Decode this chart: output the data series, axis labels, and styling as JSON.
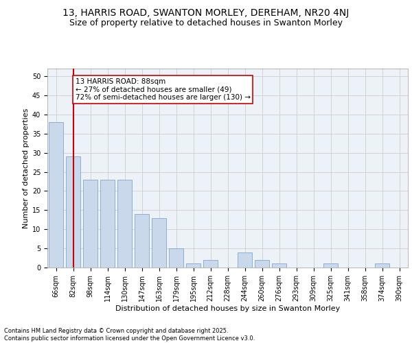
{
  "title1": "13, HARRIS ROAD, SWANTON MORLEY, DEREHAM, NR20 4NJ",
  "title2": "Size of property relative to detached houses in Swanton Morley",
  "xlabel": "Distribution of detached houses by size in Swanton Morley",
  "ylabel": "Number of detached properties",
  "categories": [
    "66sqm",
    "82sqm",
    "98sqm",
    "114sqm",
    "130sqm",
    "147sqm",
    "163sqm",
    "179sqm",
    "195sqm",
    "212sqm",
    "228sqm",
    "244sqm",
    "260sqm",
    "276sqm",
    "293sqm",
    "309sqm",
    "325sqm",
    "341sqm",
    "358sqm",
    "374sqm",
    "390sqm"
  ],
  "values": [
    38,
    29,
    23,
    23,
    23,
    14,
    13,
    5,
    1,
    2,
    0,
    4,
    2,
    1,
    0,
    0,
    1,
    0,
    0,
    1,
    0
  ],
  "bar_color": "#c9d9eb",
  "bar_edge_color": "#7fa8cc",
  "vline_x": 1.0,
  "vline_color": "#cc0000",
  "annotation_text": "13 HARRIS ROAD: 88sqm\n← 27% of detached houses are smaller (49)\n72% of semi-detached houses are larger (130) →",
  "annotation_box_color": "#ffffff",
  "annotation_box_edge": "#cc0000",
  "ylim": [
    0,
    52
  ],
  "yticks": [
    0,
    5,
    10,
    15,
    20,
    25,
    30,
    35,
    40,
    45,
    50
  ],
  "grid_color": "#cccccc",
  "background_color": "#edf2f8",
  "footer_text": "Contains HM Land Registry data © Crown copyright and database right 2025.\nContains public sector information licensed under the Open Government Licence v3.0.",
  "title_fontsize": 10,
  "subtitle_fontsize": 9,
  "axis_label_fontsize": 8,
  "tick_fontsize": 7,
  "annotation_fontsize": 7.5,
  "footer_fontsize": 6
}
